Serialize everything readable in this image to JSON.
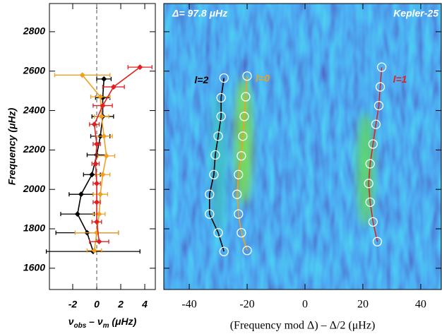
{
  "chart_data": [
    {
      "type": "errorbar",
      "ylabel": "Frequency (μHz)",
      "xlabel_parts": [
        "ν",
        "obs",
        " – ν",
        "m",
        " (μHz)"
      ],
      "xlim": [
        -3.94,
        4.88
      ],
      "xticks": [
        -2,
        0,
        2,
        4
      ],
      "ylim": [
        1492,
        2943
      ],
      "yticks": [
        1600,
        1800,
        2000,
        2200,
        2400,
        2600,
        2800
      ],
      "vline": 0,
      "series": [
        {
          "color": "#000000",
          "y": [
            2560,
            2465,
            2370,
            2270,
            2175,
            2075,
            1975,
            1875,
            1780,
            1685
          ],
          "x": [
            0.6,
            0.5,
            0.5,
            0.3,
            0,
            -0.4,
            -1.3,
            -1.6,
            -0.8,
            -0.3
          ],
          "xerr": [
            0.6,
            0.6,
            0.9,
            0.8,
            0.8,
            0.7,
            1,
            1.4,
            2.6,
            3.9
          ]
        },
        {
          "color": "#f0a020",
          "y": [
            2580,
            2470,
            2370,
            2270,
            2170,
            2075,
            1975,
            1875,
            1780,
            1690
          ],
          "x": [
            -1.2,
            0.3,
            0.4,
            0.6,
            0.8,
            0.5,
            0.3,
            0.2,
            0,
            -0.2
          ],
          "xerr": [
            2.3,
            0.8,
            0.6,
            0.7,
            0.7,
            0.6,
            0.6,
            0.5,
            1.8,
            0.6
          ]
        },
        {
          "color": "#e02020",
          "y": [
            2620,
            2520,
            2425,
            2330,
            2230,
            2130,
            2030,
            1935,
            1835,
            1735
          ],
          "x": [
            3.6,
            1.4,
            0.5,
            -0.2,
            0,
            -0.1,
            0,
            0,
            0,
            0.2
          ],
          "xerr": [
            1,
            0.9,
            0.8,
            0.4,
            0.3,
            0.3,
            0.3,
            0.3,
            0.4,
            0.8
          ]
        }
      ]
    },
    {
      "type": "echelle",
      "title_left": "Δ= 97.8 μHz",
      "title_right": "Kepler-25",
      "xlabel": "(Frequency mod Δ) – Δ/2 (μHz)",
      "xlim": [
        -48.8,
        47.1
      ],
      "xticks": [
        -40,
        -20,
        0,
        20,
        40
      ],
      "ylim": [
        1492,
        2943
      ],
      "yticks": [
        1600,
        1800,
        2000,
        2200,
        2400,
        2600,
        2800
      ],
      "series": [
        {
          "name": "l=2",
          "color": "#000000",
          "x": [
            -28,
            -29,
            -29,
            -30,
            -31,
            -31.5,
            -33,
            -33,
            -30,
            -28
          ],
          "y": [
            2565,
            2465,
            2370,
            2270,
            2175,
            2075,
            1975,
            1875,
            1780,
            1685
          ]
        },
        {
          "name": "l=0",
          "color": "#f0a020",
          "x": [
            -20,
            -20.5,
            -21,
            -21.5,
            -22,
            -23,
            -23.5,
            -23,
            -22,
            -20
          ],
          "y": [
            2575,
            2470,
            2370,
            2270,
            2170,
            2075,
            1975,
            1875,
            1780,
            1690
          ]
        },
        {
          "name": "l=1",
          "color": "#e02020",
          "x": [
            26.5,
            26,
            25.5,
            24.5,
            23.5,
            22.5,
            22,
            22.5,
            23.5,
            25
          ],
          "y": [
            2620,
            2520,
            2425,
            2330,
            2230,
            2130,
            2030,
            1935,
            1835,
            1735
          ]
        }
      ]
    }
  ]
}
